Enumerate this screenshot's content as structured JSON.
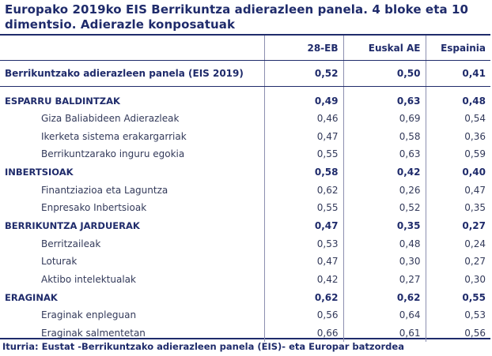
{
  "title": "Europako 2019ko EIS Berrikuntza adierazleen panela. 4 bloke eta 10 dimentsio. Adierazle konposatuak",
  "columns": [
    "28-EB",
    "Euskal AE",
    "Espainia"
  ],
  "summary": {
    "label": "Berrikuntzako adierazleen panela (EIS 2019)",
    "values": [
      "0,52",
      "0,50",
      "0,41"
    ]
  },
  "sections": [
    {
      "label": "ESPARRU BALDINTZAK",
      "values": [
        "0,49",
        "0,63",
        "0,48"
      ],
      "rows": [
        {
          "label": "Giza Baliabideen Adierazleak",
          "values": [
            "0,46",
            "0,69",
            "0,54"
          ]
        },
        {
          "label": "Ikerketa sistema erakargarriak",
          "values": [
            "0,47",
            "0,58",
            "0,36"
          ]
        },
        {
          "label": "Berrikuntzarako inguru egokia",
          "values": [
            "0,55",
            "0,63",
            "0,59"
          ]
        }
      ]
    },
    {
      "label": "INBERTSIOAK",
      "values": [
        "0,58",
        "0,42",
        "0,40"
      ],
      "rows": [
        {
          "label": "Finantziazioa eta Laguntza",
          "values": [
            "0,62",
            "0,26",
            "0,47"
          ]
        },
        {
          "label": "Enpresako Inbertsioak",
          "values": [
            "0,55",
            "0,52",
            "0,35"
          ]
        }
      ]
    },
    {
      "label": "BERRIKUNTZA JARDUERAK",
      "values": [
        "0,47",
        "0,35",
        "0,27"
      ],
      "rows": [
        {
          "label": "Berritzaileak",
          "values": [
            "0,53",
            "0,48",
            "0,24"
          ]
        },
        {
          "label": "Loturak",
          "values": [
            "0,47",
            "0,30",
            "0,27"
          ]
        },
        {
          "label": "Aktibo intelektualak",
          "values": [
            "0,42",
            "0,27",
            "0,30"
          ]
        }
      ]
    },
    {
      "label": "ERAGINAK",
      "values": [
        "0,62",
        "0,62",
        "0,55"
      ],
      "rows": [
        {
          "label": "Eraginak enpleguan",
          "values": [
            "0,56",
            "0,64",
            "0,53"
          ]
        },
        {
          "label": "Eraginak salmentetan",
          "values": [
            "0,66",
            "0,61",
            "0,56"
          ]
        }
      ]
    }
  ],
  "source": "Iturria: Eustat -Berrikuntzako adierazleen panela (EIS)- eta Europar batzordea"
}
